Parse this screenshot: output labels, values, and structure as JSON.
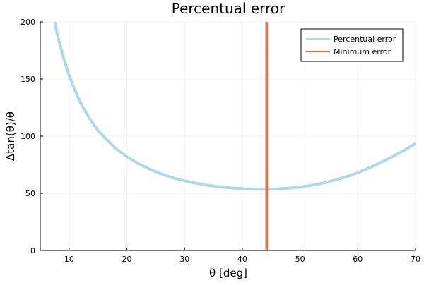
{
  "chart_data": {
    "type": "line",
    "title": "Percentual error",
    "xlabel": "θ [deg]",
    "ylabel": "Δtan(θ)/θ",
    "xlim": [
      5,
      70
    ],
    "ylim": [
      0,
      200
    ],
    "x_ticks": [
      10,
      20,
      30,
      40,
      50,
      60,
      70
    ],
    "y_ticks": [
      0,
      50,
      100,
      150,
      200
    ],
    "grid": true,
    "legend_position": "top-right",
    "series": [
      {
        "name": "Percentual error",
        "color": "#add8e6",
        "x": [
          7.5,
          8,
          9,
          10,
          11,
          12,
          13,
          14,
          15,
          16,
          18,
          20,
          22,
          24,
          26,
          28,
          30,
          32,
          34,
          36,
          38,
          40,
          42,
          44,
          46,
          48,
          50,
          52,
          54,
          56,
          58,
          60,
          62,
          64,
          66,
          68,
          70
        ],
        "y": [
          200,
          188,
          169,
          153,
          140,
          129,
          120,
          112,
          105,
          99.5,
          89.5,
          82,
          76,
          71,
          67,
          63.5,
          61,
          58.8,
          57,
          55.8,
          54.8,
          54.1,
          53.6,
          53.5,
          53.8,
          54.5,
          55.5,
          57,
          59,
          61.5,
          64.5,
          68,
          72.3,
          77,
          82,
          87.5,
          93.5
        ]
      },
      {
        "name": "Minimum error",
        "color": "#e26f46",
        "x": [
          44.2,
          44.2
        ],
        "y": [
          0,
          200
        ]
      }
    ]
  }
}
